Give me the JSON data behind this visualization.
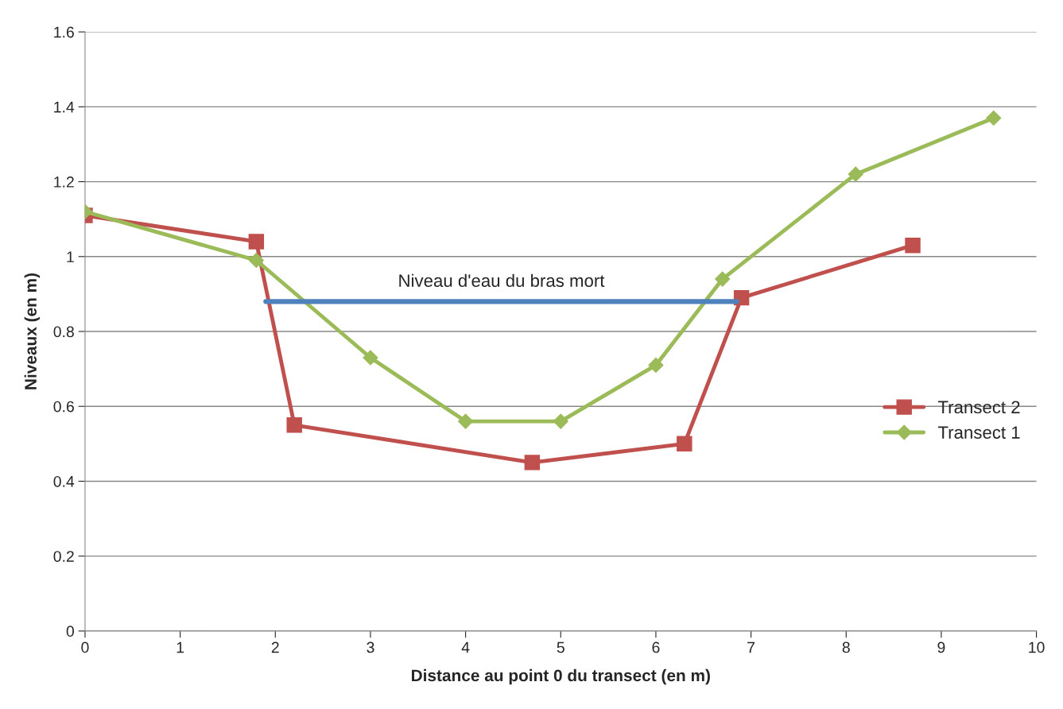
{
  "chart_data": {
    "type": "line",
    "xlabel": "Distance au point 0 du transect (en m)",
    "ylabel": "Niveaux (en m)",
    "series": [
      {
        "name": "Transect 2",
        "color": "#c0504d",
        "marker": "square",
        "x": [
          0,
          1.8,
          2.2,
          4.7,
          6.3,
          6.9,
          8.7
        ],
        "values": [
          1.11,
          1.04,
          0.55,
          0.45,
          0.5,
          0.89,
          1.03
        ]
      },
      {
        "name": "Transect 1",
        "color": "#9bbb59",
        "marker": "diamond",
        "x": [
          0,
          1.8,
          3,
          4,
          5,
          6,
          6.7,
          8.1,
          9.55
        ],
        "values": [
          1.12,
          0.99,
          0.73,
          0.56,
          0.56,
          0.71,
          0.94,
          1.22,
          1.37
        ]
      },
      {
        "color": "#4f81bd",
        "marker": "none",
        "x": [
          1.9,
          6.85
        ],
        "values": [
          0.88,
          0.88
        ]
      }
    ],
    "annotations": [
      "Niveau d'eau du bras mort"
    ],
    "xlim": [
      0,
      10
    ],
    "xticks": [
      0,
      1,
      2,
      3,
      4,
      5,
      6,
      7,
      8,
      9,
      10
    ],
    "ylim": [
      0,
      1.6
    ],
    "yticks": [
      0,
      0.2,
      0.4,
      0.6,
      0.8,
      1,
      1.2,
      1.4,
      1.6
    ],
    "grid": "y",
    "legend": "right",
    "line_style": "solid"
  }
}
